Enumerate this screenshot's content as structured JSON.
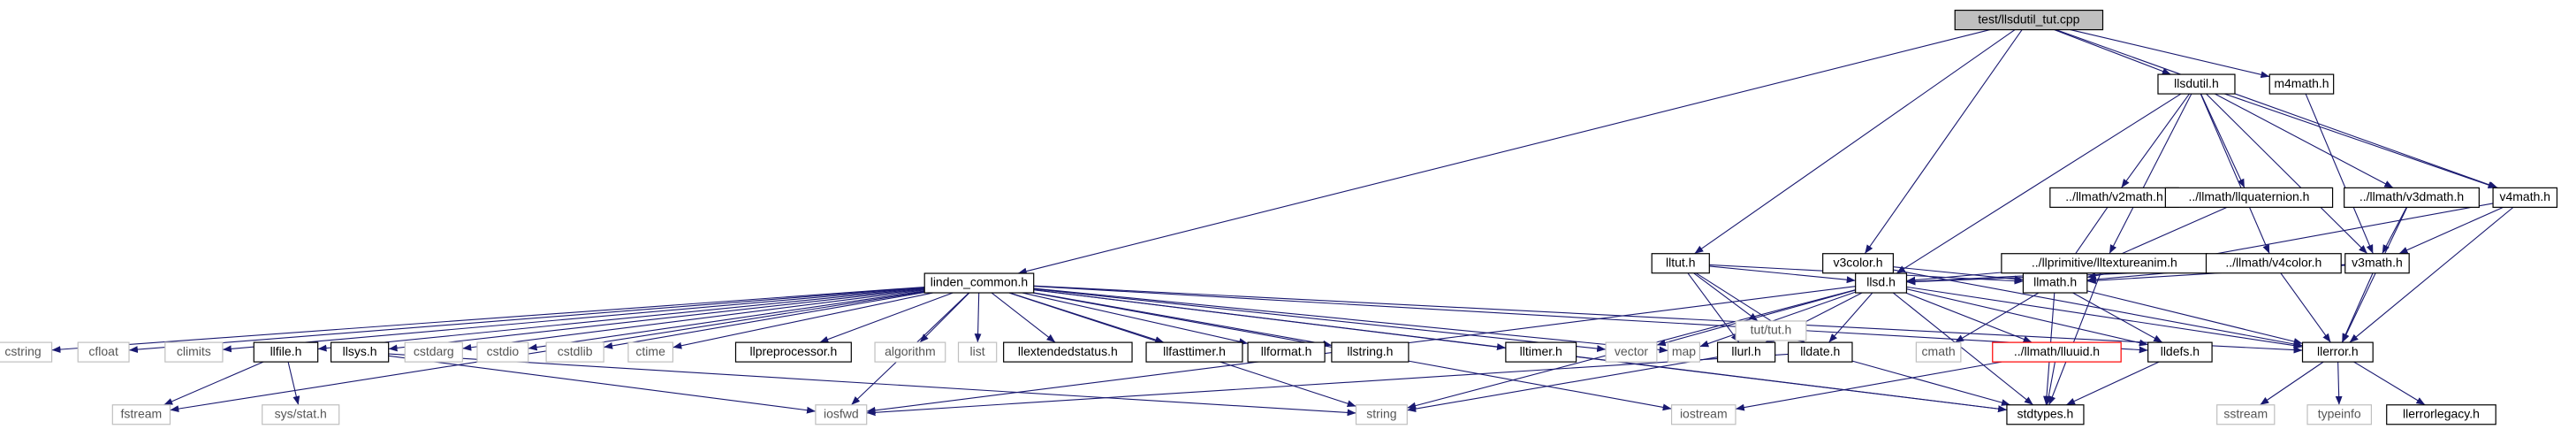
{
  "nodes": [
    {
      "label": "test/llsdutil_tut.cpp"
    },
    {
      "label": "llsdutil.h"
    },
    {
      "label": "m4math.h"
    },
    {
      "label": "../llmath/v2math.h"
    },
    {
      "label": "../llmath/llquaternion.h"
    },
    {
      "label": "../llmath/v3dmath.h"
    },
    {
      "label": "v4math.h"
    },
    {
      "label": "lltut.h"
    },
    {
      "label": "v3color.h"
    },
    {
      "label": "../llprimitive/lltextureanim.h"
    },
    {
      "label": "../llmath/v4color.h"
    },
    {
      "label": "v3math.h"
    },
    {
      "label": "linden_common.h"
    },
    {
      "label": "llsd.h"
    },
    {
      "label": "llmath.h"
    },
    {
      "label": "tut/tut.h"
    },
    {
      "label": "cstring"
    },
    {
      "label": "cfloat"
    },
    {
      "label": "climits"
    },
    {
      "label": "llfile.h"
    },
    {
      "label": "llsys.h"
    },
    {
      "label": "cstdarg"
    },
    {
      "label": "cstdio"
    },
    {
      "label": "cstdlib"
    },
    {
      "label": "ctime"
    },
    {
      "label": "llpreprocessor.h"
    },
    {
      "label": "algorithm"
    },
    {
      "label": "list"
    },
    {
      "label": "llextendedstatus.h"
    },
    {
      "label": "llfasttimer.h"
    },
    {
      "label": "llformat.h"
    },
    {
      "label": "llstring.h"
    },
    {
      "label": "lltimer.h"
    },
    {
      "label": "vector"
    },
    {
      "label": "map"
    },
    {
      "label": "llurl.h"
    },
    {
      "label": "lldate.h"
    },
    {
      "label": "cmath"
    },
    {
      "label": "../llmath/lluuid.h"
    },
    {
      "label": "lldefs.h"
    },
    {
      "label": "llerror.h"
    },
    {
      "label": "fstream"
    },
    {
      "label": "sys/stat.h"
    },
    {
      "label": "iosfwd"
    },
    {
      "label": "string"
    },
    {
      "label": "iostream"
    },
    {
      "label": "stdtypes.h"
    },
    {
      "label": "sstream"
    },
    {
      "label": "typeinfo"
    },
    {
      "label": "llerrorlegacy.h"
    }
  ]
}
